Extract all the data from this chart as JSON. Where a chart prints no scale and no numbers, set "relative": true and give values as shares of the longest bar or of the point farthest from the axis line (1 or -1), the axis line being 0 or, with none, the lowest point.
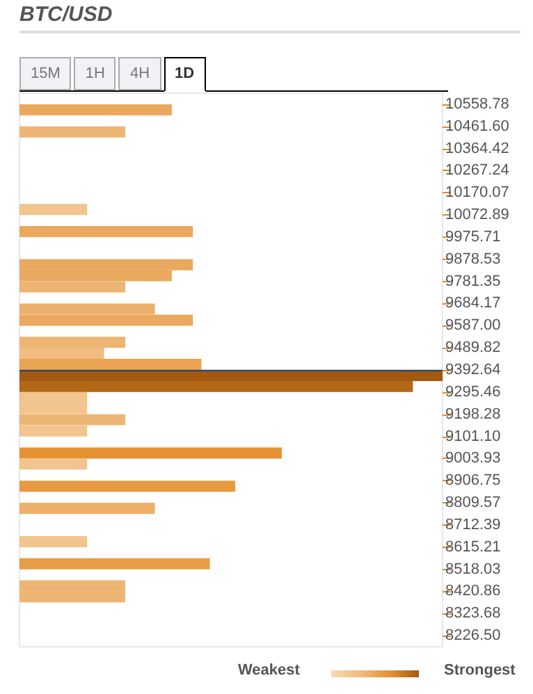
{
  "chart_data": {
    "type": "bar",
    "title": "BTC/USD",
    "orientation": "horizontal",
    "relative": true,
    "x": [
      10534,
      10437,
      10097,
      10000,
      9854,
      9806,
      9757,
      9660,
      9611,
      9514,
      9466,
      9417,
      9368,
      9320,
      9271,
      9223,
      9174,
      9125,
      9028,
      8980,
      8882,
      8785,
      8639,
      8542,
      8445,
      8397
    ],
    "values": [
      0.36,
      0.25,
      0.16,
      0.41,
      0.41,
      0.36,
      0.25,
      0.32,
      0.41,
      0.25,
      0.2,
      0.43,
      1,
      0.93,
      0.16,
      0.16,
      0.25,
      0.16,
      0.62,
      0.16,
      0.51,
      0.32,
      0.16,
      0.45,
      0.25,
      0.25
    ],
    "colors": [
      "#eaa95f",
      "#edb573",
      "#f2c48e",
      "#eaa95f",
      "#eaa95f",
      "#eaa95f",
      "#edb573",
      "#ecb06c",
      "#eaa95f",
      "#edb573",
      "#f0bb80",
      "#e9a352",
      "#a25a12",
      "#b36816",
      "#f2c48e",
      "#f2c48e",
      "#edb573",
      "#f2c48e",
      "#e69232",
      "#f2c48e",
      "#e79a40",
      "#ecb06c",
      "#f2c48e",
      "#e79c45",
      "#edb573",
      "#edb573"
    ],
    "ylim": [
      8177.87,
      10607.37
    ],
    "yticks": [
      10558.78,
      {
        "value": 10461.6,
        "label": "10461.60"
      },
      10364.42,
      10267.24,
      10170.07,
      10072.89,
      9975.71,
      9878.53,
      9781.35,
      9684.17,
      {
        "value": 9587,
        "label": "9587.00"
      },
      9489.82,
      9392.64,
      9295.46,
      9198.28,
      {
        "value": 9101.1,
        "label": "9101.10"
      },
      9003.93,
      8906.75,
      8809.57,
      8712.39,
      8615.21,
      8518.03,
      8420.86,
      8323.68,
      {
        "value": 8226.5,
        "label": "8226.50"
      }
    ],
    "ref_lines": [
      {
        "axis": "y",
        "value": 9390,
        "color": "#34495e"
      }
    ],
    "annotations": [
      "15M",
      "1H",
      "4H",
      "1D",
      "Weakest",
      "Strongest"
    ]
  }
}
